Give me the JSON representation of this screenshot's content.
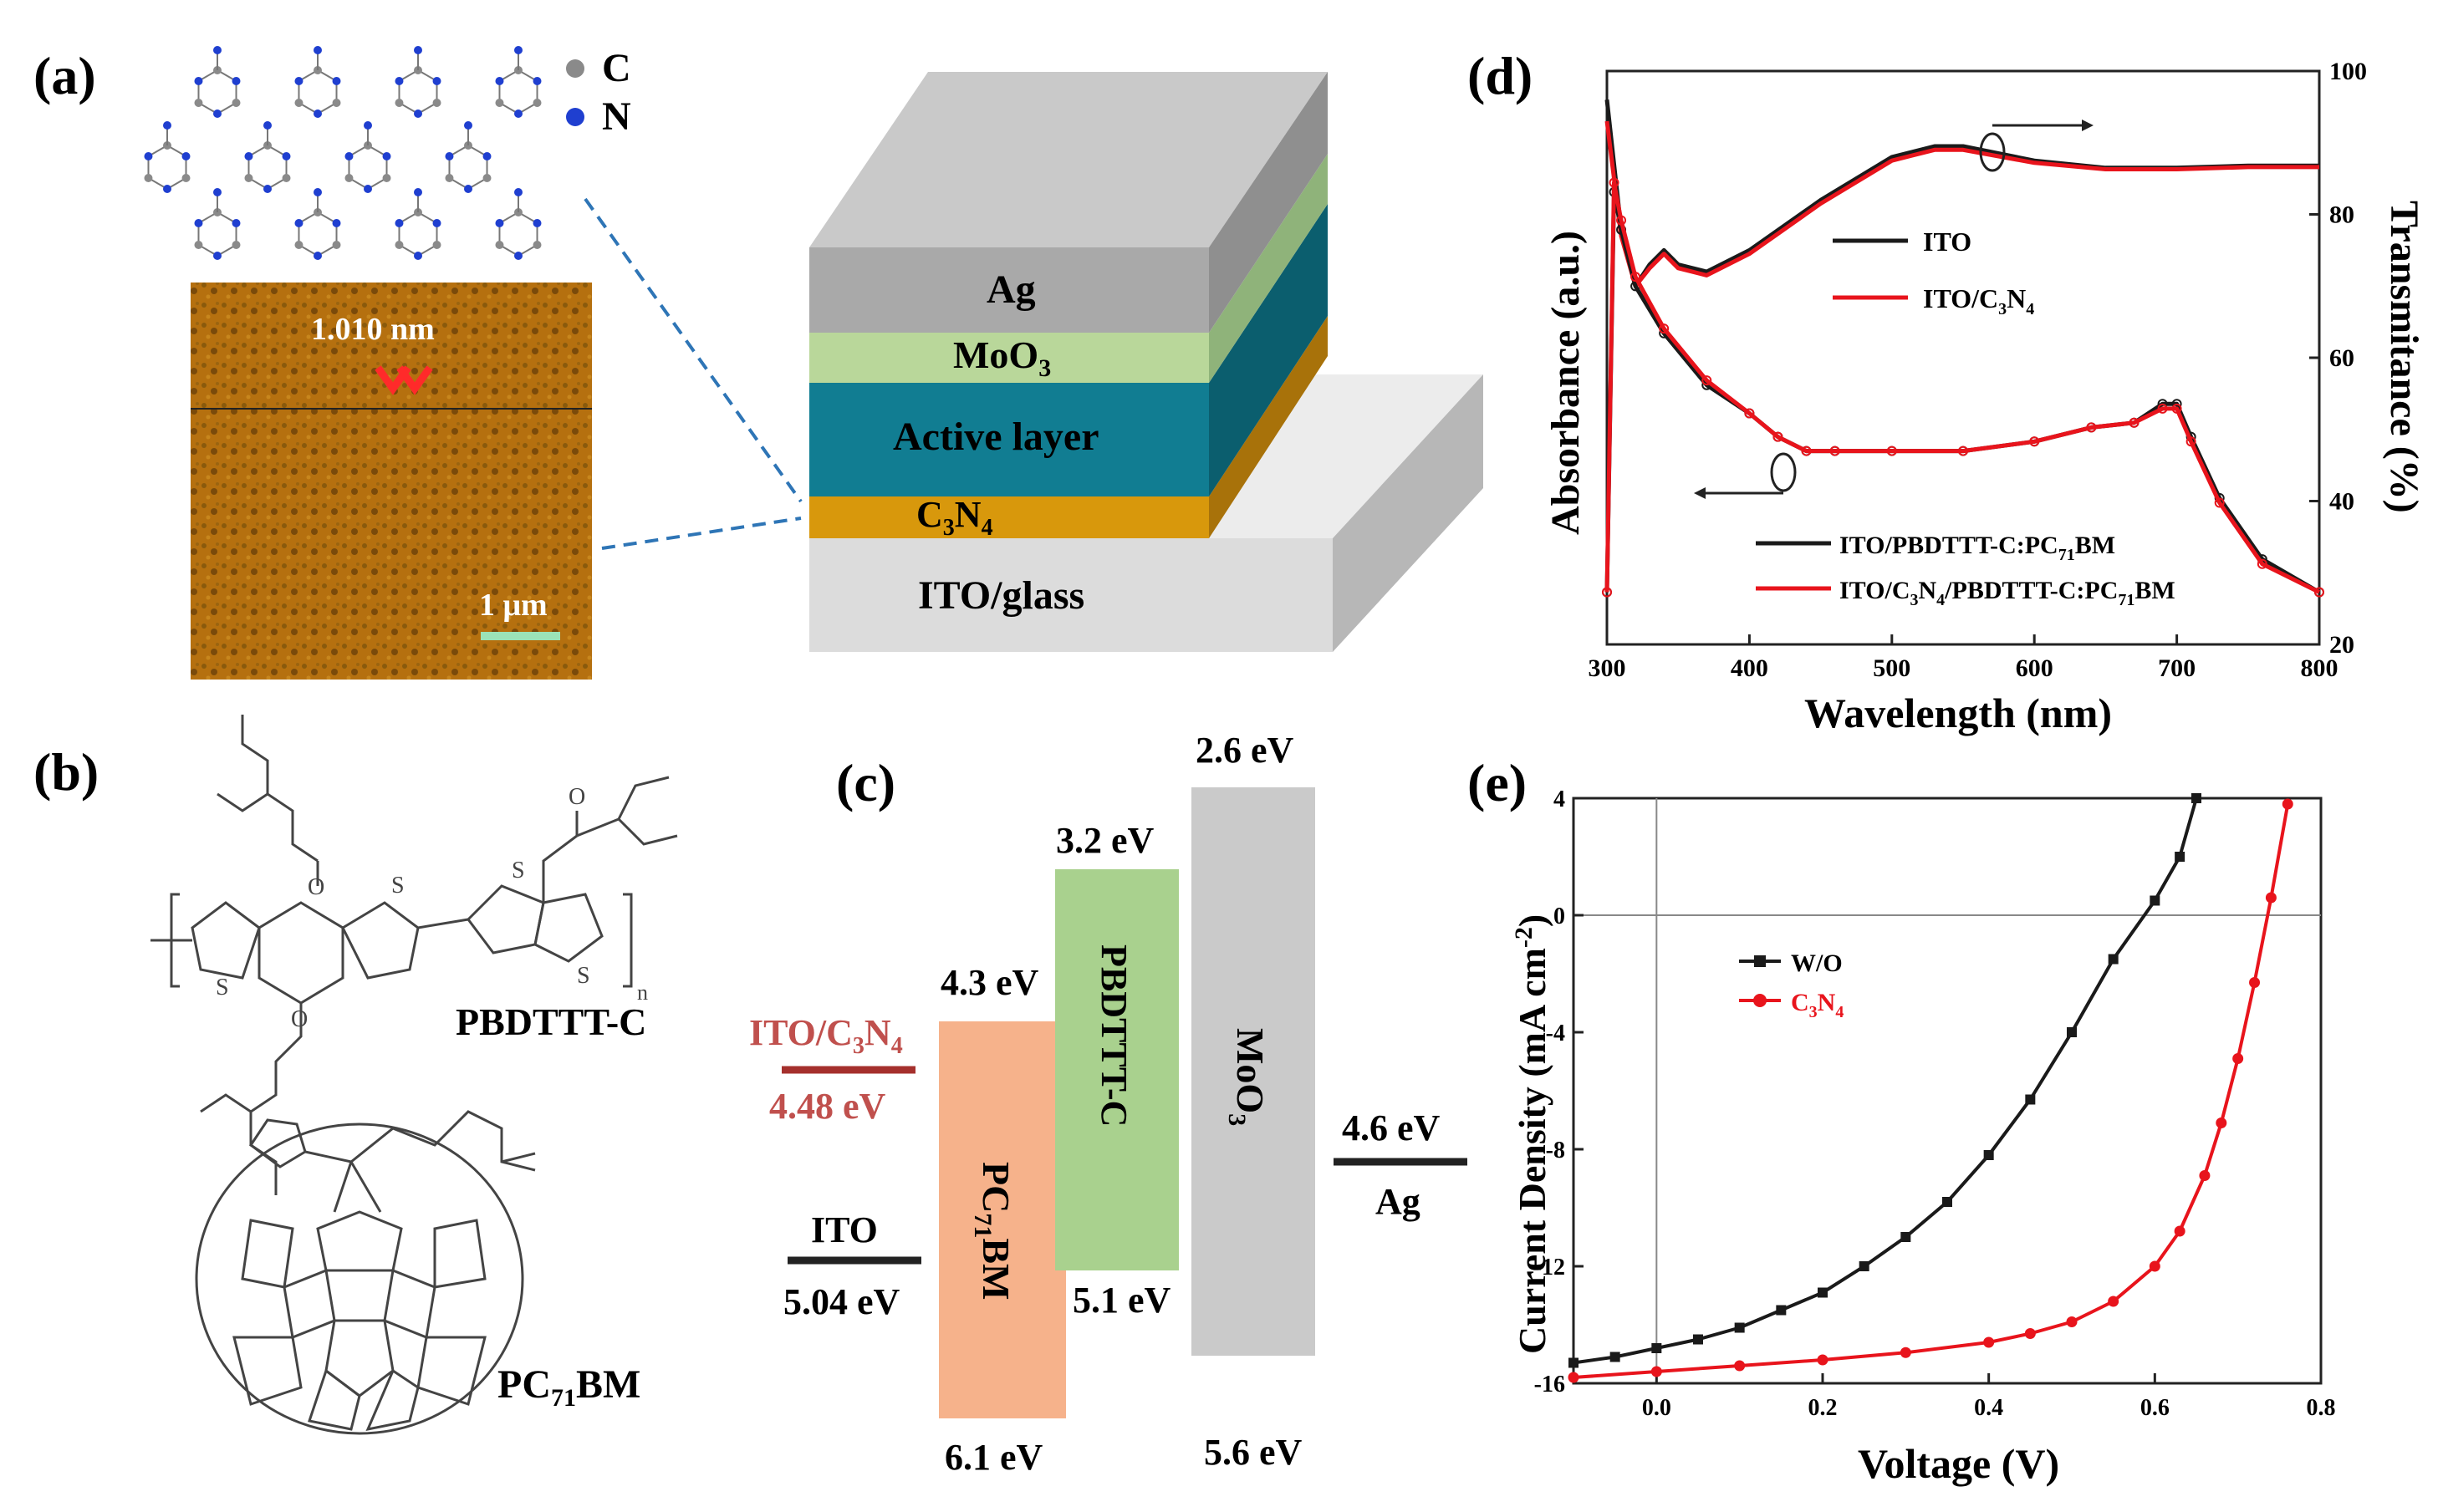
{
  "colors": {
    "afm_bg": "#b5700f",
    "afm_dark": "#7a4a0a",
    "ag": "#a9a9a9",
    "moo3": "#b9d79a",
    "active": "#117d92",
    "c3n4": "#d8980c",
    "ito": "#dcdcdc",
    "red": "#e8141c",
    "black": "#1a1a1a",
    "pc71bm_band": "#f6b28b",
    "pbdttt_band": "#a9d18e",
    "moo3_band": "#cacaca",
    "ito_c3n4_color": "#c0504d",
    "scale_bar": "#9be3b8"
  },
  "panel_a": {
    "label": "(a)",
    "legend": {
      "c": "C",
      "n": "N"
    },
    "afm": {
      "height_label": "1.010 nm",
      "scale_label": "1 μm"
    },
    "device": {
      "ag": "Ag",
      "moo3": "MoO",
      "moo3_sub": "3",
      "active": "Active layer",
      "c3n4_c": "C",
      "c3n4_sub1": "3",
      "c3n4_n": "N",
      "c3n4_sub2": "4",
      "ito": "ITO/glass"
    }
  },
  "panel_b": {
    "label": "(b)",
    "pbdttt_name": "PBDTTT-C",
    "pc71bm_name": "PC",
    "pc71bm_sub": "71",
    "pc71bm_end": "BM",
    "atoms": {
      "s": "S",
      "o": "O",
      "n": "n"
    }
  },
  "panel_c": {
    "label": "(c)",
    "ito_c3n4_label": "ITO/C",
    "ito_c3n4_sub1": "3",
    "ito_c3n4_n": "N",
    "ito_c3n4_sub2": "4",
    "ito_c3n4_value": "4.48 eV",
    "ito_label": "ITO",
    "ito_value": "5.04 eV",
    "pc71bm_top": "4.3 eV",
    "pc71bm_bottom": "6.1 eV",
    "pc71bm_name": "PC",
    "pc71bm_sub": "71",
    "pc71bm_end": "BM",
    "pbdttt_top": "3.2 eV",
    "pbdttt_bottom": "5.1 eV",
    "pbdttt_name": "PBDTTT-C",
    "moo3_top": "2.6 eV",
    "moo3_bottom": "5.6 eV",
    "moo3_name": "MoO",
    "moo3_sub": "3",
    "ag_value": "4.6 eV",
    "ag_label": "Ag"
  },
  "chart_data": [
    {
      "type": "line",
      "panel": "(d)",
      "xlabel": "Wavelength (nm)",
      "ylabel_left": "Absorbance (a.u.)",
      "ylabel_right": "Transmitance (%)",
      "xlim": [
        300,
        800
      ],
      "xticks": [
        300,
        400,
        500,
        600,
        700,
        800
      ],
      "ylim_right": [
        20,
        100
      ],
      "yticks_right": [
        20,
        40,
        60,
        80,
        100
      ],
      "series": [
        {
          "name": "ITO",
          "axis": "right",
          "color": "#1a1a1a",
          "x": [
            300,
            310,
            320,
            330,
            340,
            350,
            370,
            400,
            450,
            500,
            530,
            550,
            600,
            650,
            700,
            750,
            800
          ],
          "y": [
            96,
            78,
            70,
            73,
            75,
            73,
            72,
            75,
            82,
            88,
            89.5,
            89.5,
            87.5,
            86.5,
            86.5,
            86.8,
            86.8
          ]
        },
        {
          "name": "ITO/C3N4",
          "axis": "right",
          "color": "#e8141c",
          "x": [
            300,
            310,
            320,
            330,
            340,
            350,
            370,
            400,
            450,
            500,
            530,
            550,
            600,
            650,
            700,
            750,
            800
          ],
          "y": [
            93,
            77,
            70,
            72.5,
            74.5,
            72.5,
            71.5,
            74.5,
            81.5,
            87.5,
            89,
            89,
            87.2,
            86.3,
            86.3,
            86.6,
            86.6
          ]
        },
        {
          "name": "ITO/PBDTTT-C:PC71BM",
          "axis": "left",
          "color": "#1a1a1a",
          "x": [
            300,
            305,
            310,
            320,
            340,
            370,
            400,
            420,
            440,
            460,
            500,
            550,
            600,
            640,
            670,
            690,
            700,
            710,
            730,
            760,
            800
          ],
          "y": [
            0.05,
            0.9,
            0.82,
            0.7,
            0.6,
            0.49,
            0.43,
            0.38,
            0.35,
            0.35,
            0.35,
            0.35,
            0.37,
            0.4,
            0.41,
            0.45,
            0.45,
            0.38,
            0.25,
            0.12,
            0.05
          ]
        },
        {
          "name": "ITO/C3N4/PBDTTT-C:PC71BM",
          "axis": "left",
          "color": "#e8141c",
          "x": [
            300,
            305,
            310,
            320,
            340,
            370,
            400,
            420,
            440,
            460,
            500,
            550,
            600,
            640,
            670,
            690,
            700,
            710,
            730,
            760,
            800
          ],
          "y": [
            0.05,
            0.92,
            0.84,
            0.72,
            0.61,
            0.5,
            0.43,
            0.38,
            0.35,
            0.35,
            0.35,
            0.35,
            0.37,
            0.4,
            0.41,
            0.44,
            0.44,
            0.37,
            0.24,
            0.11,
            0.05
          ]
        }
      ],
      "legend": [
        "ITO",
        "ITO/C3N4",
        "ITO/PBDTTT-C:PC71BM",
        "ITO/C3N4/PBDTTT-C:PC71BM"
      ]
    },
    {
      "type": "line",
      "panel": "(e)",
      "xlabel": "Voltage (V)",
      "ylabel": "Current Density (mA cm-2)",
      "xlim": [
        -0.1,
        0.8
      ],
      "ylim": [
        -16,
        4
      ],
      "xticks": [
        0.0,
        0.2,
        0.4,
        0.6,
        0.8
      ],
      "yticks": [
        4,
        0,
        -4,
        -8,
        -12,
        -16
      ],
      "series": [
        {
          "name": "W/O",
          "color": "#1a1a1a",
          "marker": "square",
          "x": [
            -0.1,
            -0.05,
            0.0,
            0.05,
            0.1,
            0.15,
            0.2,
            0.25,
            0.3,
            0.35,
            0.4,
            0.45,
            0.5,
            0.55,
            0.6,
            0.63,
            0.65
          ],
          "y": [
            -15.3,
            -15.1,
            -14.8,
            -14.5,
            -14.1,
            -13.5,
            -12.9,
            -12.0,
            -11.0,
            -9.8,
            -8.2,
            -6.3,
            -4.0,
            -1.5,
            0.5,
            2.0,
            4.0
          ]
        },
        {
          "name": "C3N4",
          "color": "#e8141c",
          "marker": "circle",
          "x": [
            -0.1,
            0.0,
            0.1,
            0.2,
            0.3,
            0.4,
            0.45,
            0.5,
            0.55,
            0.6,
            0.63,
            0.66,
            0.68,
            0.7,
            0.72,
            0.74,
            0.76
          ],
          "y": [
            -15.8,
            -15.6,
            -15.4,
            -15.2,
            -14.95,
            -14.6,
            -14.3,
            -13.9,
            -13.2,
            -12.0,
            -10.8,
            -8.9,
            -7.1,
            -4.9,
            -2.3,
            0.6,
            3.8
          ]
        }
      ],
      "legend": [
        "W/O",
        "C3N4"
      ]
    }
  ],
  "panel_d": {
    "label": "(d)",
    "xlabel": "Wavelength (nm)",
    "ylabel_left": "Absorbance (a.u.)",
    "ylabel_right": "Transmitance (%)",
    "legend_top_1": "ITO",
    "legend_top_2_main": "ITO/C",
    "legend_top_2_sub1": "3",
    "legend_top_2_mid": "N",
    "legend_top_2_sub2": "4",
    "legend_bot_1_main": "ITO/PBDTTT-C:PC",
    "legend_bot_1_sub": "71",
    "legend_bot_1_end": "BM",
    "legend_bot_2_a": "ITO/C",
    "legend_bot_2_s1": "3",
    "legend_bot_2_b": "N",
    "legend_bot_2_s2": "4",
    "legend_bot_2_c": "/PBDTTT-C:PC",
    "legend_bot_2_s3": "71",
    "legend_bot_2_d": "BM"
  },
  "panel_e": {
    "label": "(e)",
    "xlabel": "Voltage (V)",
    "ylabel_main": "Current Density (mA cm",
    "ylabel_sup": "-2",
    "ylabel_end": ")",
    "legend_1": "W/O",
    "legend_2_main": "C",
    "legend_2_sub1": "3",
    "legend_2_mid": "N",
    "legend_2_sub2": "4"
  }
}
